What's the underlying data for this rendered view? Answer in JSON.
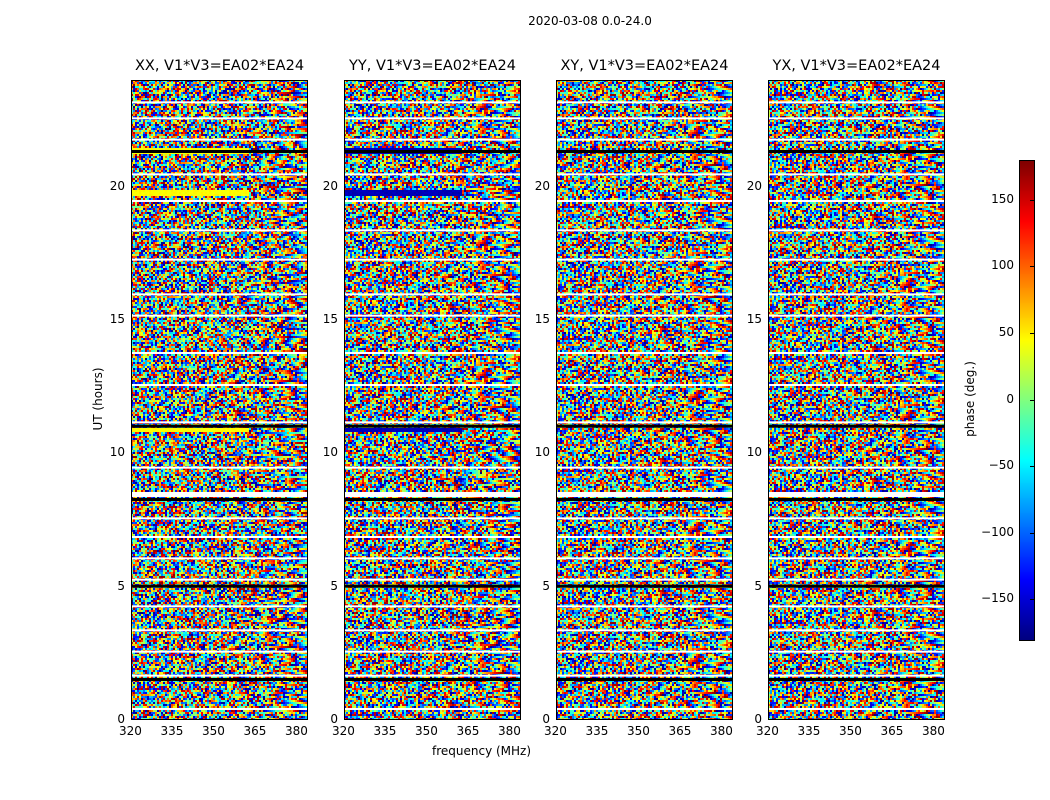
{
  "chart_data": {
    "type": "heatmap",
    "title": "2020-03-08 0.0-24.0",
    "panels": [
      {
        "title": "XX, V1*V3=EA02*EA24"
      },
      {
        "title": "YY, V1*V3=EA02*EA24"
      },
      {
        "title": "XY, V1*V3=EA02*EA24"
      },
      {
        "title": "YX, V1*V3=EA02*EA24"
      }
    ],
    "xlabel": "frequency (MHz)",
    "ylabel": "UT (hours)",
    "xlim": [
      320,
      384
    ],
    "ylim": [
      0,
      24
    ],
    "xticks": [
      "320",
      "335",
      "350",
      "365",
      "380"
    ],
    "xtick_values": [
      320,
      335,
      350,
      365,
      380
    ],
    "yticks": [
      "0",
      "5",
      "10",
      "15",
      "20"
    ],
    "ytick_values": [
      0,
      5,
      10,
      15,
      20
    ],
    "colorbar": {
      "label": "phase (deg.)",
      "range": [
        -180,
        180
      ],
      "colormap": "jet",
      "ticks": [
        "150",
        "100",
        "50",
        "0",
        "−50",
        "−100",
        "−150"
      ],
      "tick_values": [
        150,
        100,
        50,
        0,
        -50,
        -100,
        -150
      ]
    },
    "black_bands_ut": [
      1.5,
      5.0,
      8.25,
      11.0,
      21.3
    ],
    "flagged_gaps_ut": [
      0.45,
      1.7,
      2.6,
      3.4,
      4.3,
      5.3,
      6.1,
      6.9,
      7.6,
      8.45,
      9.5,
      11.2,
      12.6,
      13.8,
      15.2,
      16.0,
      17.3,
      18.4,
      19.5,
      20.5,
      21.8,
      22.6,
      23.2
    ],
    "constant_phase_bands": [
      {
        "panel": 0,
        "ut": [
          21.3,
          21.5
        ],
        "phase": 45,
        "max_freq": 362
      },
      {
        "panel": 0,
        "ut": [
          19.7,
          19.9
        ],
        "phase": 45,
        "max_freq": 362
      },
      {
        "panel": 0,
        "ut": [
          10.8,
          11.0
        ],
        "phase": 45,
        "max_freq": 362
      },
      {
        "panel": 1,
        "ut": [
          21.3,
          21.5
        ],
        "phase": -160,
        "max_freq": 362
      },
      {
        "panel": 1,
        "ut": [
          19.7,
          19.9
        ],
        "phase": -160,
        "max_freq": 362
      },
      {
        "panel": 1,
        "ut": [
          10.8,
          11.0
        ],
        "phase": -160,
        "max_freq": 362
      }
    ]
  }
}
